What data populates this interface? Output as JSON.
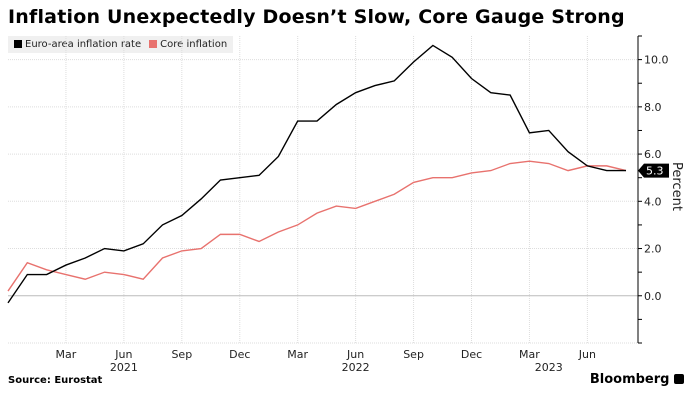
{
  "chart_data": {
    "type": "line",
    "title": "Inflation Unexpectedly Doesn’t Slow, Core Gauge Strong",
    "ylabel": "Percent",
    "xlabel": "",
    "ylim": [
      -2,
      11
    ],
    "yticks": [
      "10.0",
      "8.0",
      "6.0",
      "4.0",
      "2.0",
      "0.0"
    ],
    "ytick_values": [
      10,
      8,
      6,
      4,
      2,
      0
    ],
    "grid": true,
    "legend": "top-left",
    "x": [
      "2020-12",
      "2021-01",
      "2021-02",
      "2021-03",
      "2021-04",
      "2021-05",
      "2021-06",
      "2021-07",
      "2021-08",
      "2021-09",
      "2021-10",
      "2021-11",
      "2021-12",
      "2022-01",
      "2022-02",
      "2022-03",
      "2022-04",
      "2022-05",
      "2022-06",
      "2022-07",
      "2022-08",
      "2022-09",
      "2022-10",
      "2022-11",
      "2022-12",
      "2023-01",
      "2023-02",
      "2023-03",
      "2023-04",
      "2023-05",
      "2023-06",
      "2023-07",
      "2023-08"
    ],
    "xticks": [
      {
        "label": "Mar",
        "x": "2021-03"
      },
      {
        "label": "Jun",
        "x": "2021-06"
      },
      {
        "label": "Sep",
        "x": "2021-09"
      },
      {
        "label": "Dec",
        "x": "2021-12"
      },
      {
        "label": "Mar",
        "x": "2022-03"
      },
      {
        "label": "Jun",
        "x": "2022-06"
      },
      {
        "label": "Sep",
        "x": "2022-09"
      },
      {
        "label": "Dec",
        "x": "2022-12"
      },
      {
        "label": "Mar",
        "x": "2023-03"
      },
      {
        "label": "Jun",
        "x": "2023-06"
      }
    ],
    "years": [
      {
        "label": "2021",
        "x": "2021-06"
      },
      {
        "label": "2022",
        "x": "2022-06"
      },
      {
        "label": "2023",
        "x": "2023-04"
      }
    ],
    "series": [
      {
        "name": "Euro-area inflation rate",
        "color": "#000000",
        "values": [
          -0.3,
          0.9,
          0.9,
          1.3,
          1.6,
          2.0,
          1.9,
          2.2,
          3.0,
          3.4,
          4.1,
          4.9,
          5.0,
          5.1,
          5.9,
          7.4,
          7.4,
          8.1,
          8.6,
          8.9,
          9.1,
          9.9,
          10.6,
          10.1,
          9.2,
          8.6,
          8.5,
          6.9,
          7.0,
          6.1,
          5.5,
          5.3,
          5.3
        ]
      },
      {
        "name": "Core inflation",
        "color": "#e8726e",
        "values": [
          0.2,
          1.4,
          1.1,
          0.9,
          0.7,
          1.0,
          0.9,
          0.7,
          1.6,
          1.9,
          2.0,
          2.6,
          2.6,
          2.3,
          2.7,
          3.0,
          3.5,
          3.8,
          3.7,
          4.0,
          4.3,
          4.8,
          5.0,
          5.0,
          5.2,
          5.3,
          5.6,
          5.7,
          5.6,
          5.3,
          5.5,
          5.5,
          5.3
        ]
      }
    ],
    "last_value_label": "5.3"
  },
  "footer": {
    "source": "Source: Eurostat",
    "brand": "Bloomberg"
  }
}
